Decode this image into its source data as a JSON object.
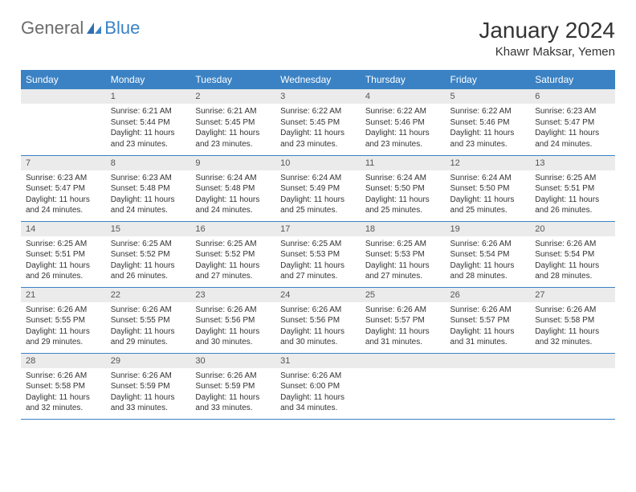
{
  "brand": {
    "general": "General",
    "blue": "Blue"
  },
  "title": "January 2024",
  "location": "Khawr Maksar, Yemen",
  "colors": {
    "accent": "#3b82c4",
    "header_bg": "#3b82c4",
    "header_text": "#ffffff",
    "daynum_bg": "#ebebeb",
    "daynum_text": "#555555",
    "body_text": "#333333",
    "logo_gray": "#6c6c6c",
    "page_bg": "#ffffff"
  },
  "weekdays": [
    "Sunday",
    "Monday",
    "Tuesday",
    "Wednesday",
    "Thursday",
    "Friday",
    "Saturday"
  ],
  "weeks": [
    [
      {
        "day": "",
        "sunrise": "",
        "sunset": "",
        "daylight": ""
      },
      {
        "day": "1",
        "sunrise": "Sunrise: 6:21 AM",
        "sunset": "Sunset: 5:44 PM",
        "daylight": "Daylight: 11 hours and 23 minutes."
      },
      {
        "day": "2",
        "sunrise": "Sunrise: 6:21 AM",
        "sunset": "Sunset: 5:45 PM",
        "daylight": "Daylight: 11 hours and 23 minutes."
      },
      {
        "day": "3",
        "sunrise": "Sunrise: 6:22 AM",
        "sunset": "Sunset: 5:45 PM",
        "daylight": "Daylight: 11 hours and 23 minutes."
      },
      {
        "day": "4",
        "sunrise": "Sunrise: 6:22 AM",
        "sunset": "Sunset: 5:46 PM",
        "daylight": "Daylight: 11 hours and 23 minutes."
      },
      {
        "day": "5",
        "sunrise": "Sunrise: 6:22 AM",
        "sunset": "Sunset: 5:46 PM",
        "daylight": "Daylight: 11 hours and 23 minutes."
      },
      {
        "day": "6",
        "sunrise": "Sunrise: 6:23 AM",
        "sunset": "Sunset: 5:47 PM",
        "daylight": "Daylight: 11 hours and 24 minutes."
      }
    ],
    [
      {
        "day": "7",
        "sunrise": "Sunrise: 6:23 AM",
        "sunset": "Sunset: 5:47 PM",
        "daylight": "Daylight: 11 hours and 24 minutes."
      },
      {
        "day": "8",
        "sunrise": "Sunrise: 6:23 AM",
        "sunset": "Sunset: 5:48 PM",
        "daylight": "Daylight: 11 hours and 24 minutes."
      },
      {
        "day": "9",
        "sunrise": "Sunrise: 6:24 AM",
        "sunset": "Sunset: 5:48 PM",
        "daylight": "Daylight: 11 hours and 24 minutes."
      },
      {
        "day": "10",
        "sunrise": "Sunrise: 6:24 AM",
        "sunset": "Sunset: 5:49 PM",
        "daylight": "Daylight: 11 hours and 25 minutes."
      },
      {
        "day": "11",
        "sunrise": "Sunrise: 6:24 AM",
        "sunset": "Sunset: 5:50 PM",
        "daylight": "Daylight: 11 hours and 25 minutes."
      },
      {
        "day": "12",
        "sunrise": "Sunrise: 6:24 AM",
        "sunset": "Sunset: 5:50 PM",
        "daylight": "Daylight: 11 hours and 25 minutes."
      },
      {
        "day": "13",
        "sunrise": "Sunrise: 6:25 AM",
        "sunset": "Sunset: 5:51 PM",
        "daylight": "Daylight: 11 hours and 26 minutes."
      }
    ],
    [
      {
        "day": "14",
        "sunrise": "Sunrise: 6:25 AM",
        "sunset": "Sunset: 5:51 PM",
        "daylight": "Daylight: 11 hours and 26 minutes."
      },
      {
        "day": "15",
        "sunrise": "Sunrise: 6:25 AM",
        "sunset": "Sunset: 5:52 PM",
        "daylight": "Daylight: 11 hours and 26 minutes."
      },
      {
        "day": "16",
        "sunrise": "Sunrise: 6:25 AM",
        "sunset": "Sunset: 5:52 PM",
        "daylight": "Daylight: 11 hours and 27 minutes."
      },
      {
        "day": "17",
        "sunrise": "Sunrise: 6:25 AM",
        "sunset": "Sunset: 5:53 PM",
        "daylight": "Daylight: 11 hours and 27 minutes."
      },
      {
        "day": "18",
        "sunrise": "Sunrise: 6:25 AM",
        "sunset": "Sunset: 5:53 PM",
        "daylight": "Daylight: 11 hours and 27 minutes."
      },
      {
        "day": "19",
        "sunrise": "Sunrise: 6:26 AM",
        "sunset": "Sunset: 5:54 PM",
        "daylight": "Daylight: 11 hours and 28 minutes."
      },
      {
        "day": "20",
        "sunrise": "Sunrise: 6:26 AM",
        "sunset": "Sunset: 5:54 PM",
        "daylight": "Daylight: 11 hours and 28 minutes."
      }
    ],
    [
      {
        "day": "21",
        "sunrise": "Sunrise: 6:26 AM",
        "sunset": "Sunset: 5:55 PM",
        "daylight": "Daylight: 11 hours and 29 minutes."
      },
      {
        "day": "22",
        "sunrise": "Sunrise: 6:26 AM",
        "sunset": "Sunset: 5:55 PM",
        "daylight": "Daylight: 11 hours and 29 minutes."
      },
      {
        "day": "23",
        "sunrise": "Sunrise: 6:26 AM",
        "sunset": "Sunset: 5:56 PM",
        "daylight": "Daylight: 11 hours and 30 minutes."
      },
      {
        "day": "24",
        "sunrise": "Sunrise: 6:26 AM",
        "sunset": "Sunset: 5:56 PM",
        "daylight": "Daylight: 11 hours and 30 minutes."
      },
      {
        "day": "25",
        "sunrise": "Sunrise: 6:26 AM",
        "sunset": "Sunset: 5:57 PM",
        "daylight": "Daylight: 11 hours and 31 minutes."
      },
      {
        "day": "26",
        "sunrise": "Sunrise: 6:26 AM",
        "sunset": "Sunset: 5:57 PM",
        "daylight": "Daylight: 11 hours and 31 minutes."
      },
      {
        "day": "27",
        "sunrise": "Sunrise: 6:26 AM",
        "sunset": "Sunset: 5:58 PM",
        "daylight": "Daylight: 11 hours and 32 minutes."
      }
    ],
    [
      {
        "day": "28",
        "sunrise": "Sunrise: 6:26 AM",
        "sunset": "Sunset: 5:58 PM",
        "daylight": "Daylight: 11 hours and 32 minutes."
      },
      {
        "day": "29",
        "sunrise": "Sunrise: 6:26 AM",
        "sunset": "Sunset: 5:59 PM",
        "daylight": "Daylight: 11 hours and 33 minutes."
      },
      {
        "day": "30",
        "sunrise": "Sunrise: 6:26 AM",
        "sunset": "Sunset: 5:59 PM",
        "daylight": "Daylight: 11 hours and 33 minutes."
      },
      {
        "day": "31",
        "sunrise": "Sunrise: 6:26 AM",
        "sunset": "Sunset: 6:00 PM",
        "daylight": "Daylight: 11 hours and 34 minutes."
      },
      {
        "day": "",
        "sunrise": "",
        "sunset": "",
        "daylight": ""
      },
      {
        "day": "",
        "sunrise": "",
        "sunset": "",
        "daylight": ""
      },
      {
        "day": "",
        "sunrise": "",
        "sunset": "",
        "daylight": ""
      }
    ]
  ]
}
